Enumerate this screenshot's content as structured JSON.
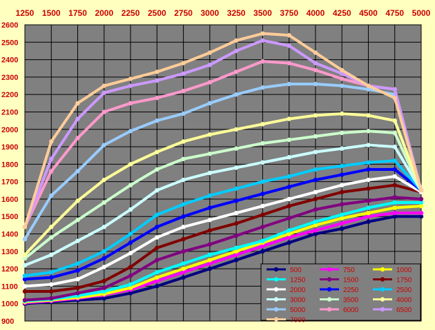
{
  "chart_data": {
    "type": "line",
    "title": "",
    "xlabel": "",
    "ylabel": "",
    "xlim": [
      1250,
      5000
    ],
    "ylim": [
      900,
      2600
    ],
    "x": [
      1250,
      1500,
      1750,
      2000,
      2250,
      2500,
      2750,
      3000,
      3250,
      3500,
      3750,
      4000,
      4250,
      4500,
      4750,
      5000
    ],
    "x_ticks": [
      "1250",
      "1500",
      "1750",
      "2000",
      "2250",
      "2500",
      "2750",
      "3000",
      "3250",
      "3500",
      "3750",
      "4000",
      "4250",
      "4500",
      "4750",
      "5000"
    ],
    "y_ticks": [
      "900",
      "1000",
      "1100",
      "1200",
      "1300",
      "1400",
      "1500",
      "1600",
      "1700",
      "1800",
      "1900",
      "2000",
      "2100",
      "2200",
      "2300",
      "2400",
      "2500",
      "2600"
    ],
    "grid": true,
    "legend_position": "bottom-right",
    "colors": {
      "background": "#ffffc0",
      "plot_area": "#808080",
      "grid": "#000000",
      "tick_label": "#cc0000"
    },
    "series": [
      {
        "name": "500",
        "color": "#000080",
        "values": [
          1000,
          1010,
          1020,
          1030,
          1060,
          1100,
          1150,
          1200,
          1250,
          1300,
          1350,
          1400,
          1430,
          1470,
          1500,
          1500
        ]
      },
      {
        "name": "750",
        "color": "#ff00ff",
        "values": [
          1005,
          1015,
          1030,
          1050,
          1080,
          1130,
          1180,
          1230,
          1280,
          1330,
          1380,
          1420,
          1460,
          1500,
          1520,
          1520
        ]
      },
      {
        "name": "1000",
        "color": "#ffff00",
        "values": [
          1010,
          1020,
          1035,
          1055,
          1090,
          1150,
          1200,
          1250,
          1300,
          1350,
          1400,
          1450,
          1490,
          1520,
          1550,
          1560
        ]
      },
      {
        "name": "1250",
        "color": "#00ffff",
        "values": [
          1015,
          1025,
          1045,
          1070,
          1110,
          1180,
          1230,
          1280,
          1320,
          1360,
          1420,
          1470,
          1510,
          1550,
          1580,
          1580
        ]
      },
      {
        "name": "1500",
        "color": "#800080",
        "values": [
          1020,
          1030,
          1060,
          1090,
          1160,
          1250,
          1300,
          1340,
          1390,
          1440,
          1490,
          1540,
          1570,
          1590,
          1610,
          1600
        ]
      },
      {
        "name": "1750",
        "color": "#800000",
        "values": [
          1070,
          1070,
          1090,
          1130,
          1210,
          1320,
          1370,
          1420,
          1460,
          1510,
          1560,
          1600,
          1640,
          1660,
          1680,
          1640
        ]
      },
      {
        "name": "2000",
        "color": "#ffffff",
        "values": [
          1100,
          1110,
          1140,
          1210,
          1290,
          1380,
          1440,
          1480,
          1520,
          1560,
          1600,
          1640,
          1680,
          1710,
          1730,
          1640
        ]
      },
      {
        "name": "2250",
        "color": "#0000ff",
        "values": [
          1140,
          1150,
          1190,
          1260,
          1350,
          1440,
          1500,
          1550,
          1590,
          1630,
          1670,
          1710,
          1740,
          1770,
          1770,
          1650
        ]
      },
      {
        "name": "2500",
        "color": "#00ccff",
        "values": [
          1160,
          1180,
          1230,
          1300,
          1400,
          1510,
          1570,
          1620,
          1660,
          1700,
          1730,
          1770,
          1790,
          1810,
          1820,
          1650
        ]
      },
      {
        "name": "3000",
        "color": "#ccffff",
        "values": [
          1220,
          1280,
          1360,
          1440,
          1540,
          1650,
          1710,
          1750,
          1780,
          1810,
          1840,
          1870,
          1890,
          1910,
          1900,
          1650
        ]
      },
      {
        "name": "3500",
        "color": "#ccffcc",
        "values": [
          1260,
          1380,
          1480,
          1580,
          1680,
          1770,
          1830,
          1860,
          1890,
          1920,
          1940,
          1960,
          1980,
          1990,
          1980,
          1650
        ]
      },
      {
        "name": "4000",
        "color": "#ffff99",
        "values": [
          1280,
          1440,
          1590,
          1710,
          1800,
          1870,
          1930,
          1970,
          2000,
          2030,
          2060,
          2080,
          2090,
          2080,
          2050,
          1650
        ]
      },
      {
        "name": "5000",
        "color": "#99ccff",
        "values": [
          1370,
          1620,
          1760,
          1910,
          1990,
          2050,
          2090,
          2150,
          2200,
          2240,
          2260,
          2260,
          2250,
          2230,
          2200,
          1650
        ]
      },
      {
        "name": "6000",
        "color": "#ff99cc",
        "values": [
          1440,
          1760,
          1950,
          2100,
          2150,
          2180,
          2220,
          2270,
          2330,
          2390,
          2380,
          2340,
          2290,
          2250,
          2230,
          1650
        ]
      },
      {
        "name": "6500",
        "color": "#cc99ff",
        "values": [
          1440,
          1830,
          2060,
          2210,
          2250,
          2280,
          2320,
          2370,
          2450,
          2510,
          2480,
          2380,
          2320,
          2250,
          2230,
          1650
        ]
      },
      {
        "name": "7000",
        "color": "#ffcc99",
        "values": [
          1440,
          1930,
          2150,
          2250,
          2290,
          2330,
          2380,
          2440,
          2510,
          2550,
          2540,
          2440,
          2340,
          2250,
          2180,
          1650
        ]
      }
    ]
  }
}
